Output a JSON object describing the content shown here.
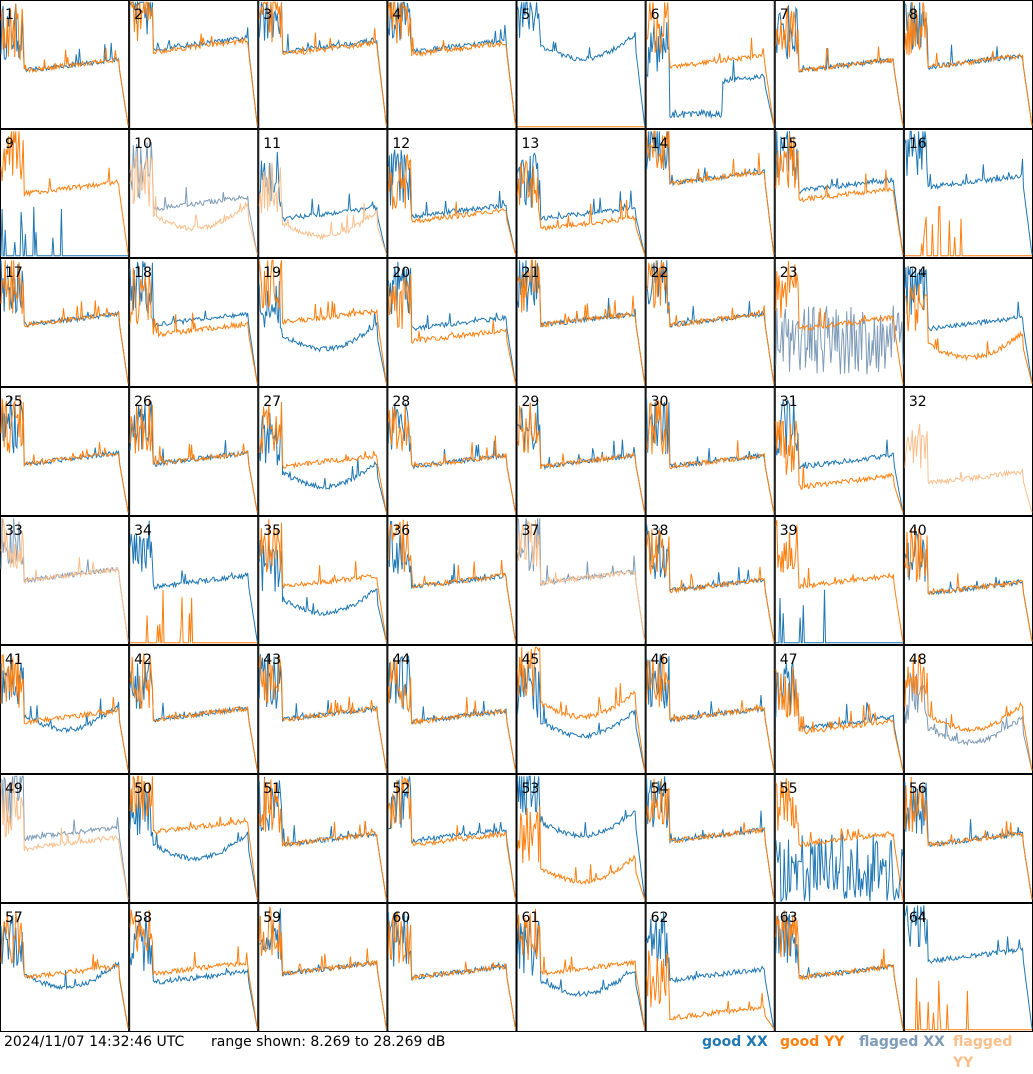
{
  "chart_data": {
    "type": "line",
    "layout": "small-multiples-8x8",
    "tile_labels": [
      "1",
      "2",
      "3",
      "4",
      "5",
      "6",
      "7",
      "8",
      "9",
      "10",
      "11",
      "12",
      "13",
      "14",
      "15",
      "16",
      "17",
      "18",
      "19",
      "20",
      "21",
      "22",
      "23",
      "24",
      "25",
      "26",
      "27",
      "28",
      "29",
      "30",
      "31",
      "32",
      "33",
      "34",
      "35",
      "36",
      "37",
      "38",
      "39",
      "40",
      "41",
      "42",
      "43",
      "44",
      "45",
      "46",
      "47",
      "48",
      "49",
      "50",
      "51",
      "52",
      "53",
      "54",
      "55",
      "56",
      "57",
      "58",
      "59",
      "60",
      "61",
      "62",
      "63",
      "64"
    ],
    "ylim": [
      8.269,
      28.269
    ],
    "y_unit": "dB",
    "series_styles": {
      "good_xx": "#1f77b4",
      "good_yy": "#ff7f0e",
      "flagged_xx": "#7e9bb8",
      "flagged_yy": "#fbbf8c"
    },
    "tiles": [
      {
        "xx": "good",
        "yy": "good",
        "xx_level": 0.45,
        "yy_level": 0.45,
        "xx_shape": "normal",
        "yy_shape": "normal"
      },
      {
        "xx": "good",
        "yy": "good",
        "xx_level": 0.62,
        "yy_level": 0.6,
        "xx_shape": "normal",
        "yy_shape": "normal"
      },
      {
        "xx": "good",
        "yy": "good",
        "xx_level": 0.6,
        "yy_level": 0.58,
        "xx_shape": "normal",
        "yy_shape": "normal"
      },
      {
        "xx": "good",
        "yy": "good",
        "xx_level": 0.6,
        "yy_level": 0.58,
        "xx_shape": "normal",
        "yy_shape": "normal"
      },
      {
        "xx": "good",
        "yy": "good",
        "xx_level": 0.6,
        "yy_level": 0.0,
        "xx_shape": "dipbump",
        "yy_shape": "flat"
      },
      {
        "xx": "good",
        "yy": "good",
        "xx_level": 0.32,
        "yy_level": 0.48,
        "xx_shape": "deepdip",
        "yy_shape": "normal"
      },
      {
        "xx": "good",
        "yy": "good",
        "xx_level": 0.45,
        "yy_level": 0.45,
        "xx_shape": "normal",
        "yy_shape": "normal"
      },
      {
        "xx": "good",
        "yy": "good",
        "xx_level": 0.48,
        "yy_level": 0.48,
        "xx_shape": "normal",
        "yy_shape": "normal"
      },
      {
        "xx": "good",
        "yy": "good",
        "xx_level": 0.0,
        "yy_level": 0.5,
        "xx_shape": "spikeslow",
        "yy_shape": "normal"
      },
      {
        "xx": "flagged",
        "yy": "flagged",
        "xx_level": 0.38,
        "yy_level": 0.28,
        "xx_shape": "normal",
        "yy_shape": "dipbump"
      },
      {
        "xx": "good",
        "yy": "flagged",
        "xx_level": 0.3,
        "yy_level": 0.22,
        "xx_shape": "normal",
        "yy_shape": "dipbump"
      },
      {
        "xx": "good",
        "yy": "good",
        "xx_level": 0.32,
        "yy_level": 0.28,
        "xx_shape": "normal",
        "yy_shape": "normal"
      },
      {
        "xx": "good",
        "yy": "good",
        "xx_level": 0.3,
        "yy_level": 0.22,
        "xx_shape": "normal",
        "yy_shape": "normal"
      },
      {
        "xx": "good",
        "yy": "good",
        "xx_level": 0.58,
        "yy_level": 0.58,
        "xx_shape": "normal",
        "yy_shape": "normal"
      },
      {
        "xx": "good",
        "yy": "good",
        "xx_level": 0.52,
        "yy_level": 0.45,
        "xx_shape": "normal",
        "yy_shape": "normal"
      },
      {
        "xx": "good",
        "yy": "good",
        "xx_level": 0.55,
        "yy_level": 0.0,
        "xx_shape": "normal",
        "yy_shape": "spikeslow"
      },
      {
        "xx": "good",
        "yy": "good",
        "xx_level": 0.48,
        "yy_level": 0.48,
        "xx_shape": "normal",
        "yy_shape": "normal"
      },
      {
        "xx": "good",
        "yy": "good",
        "xx_level": 0.48,
        "yy_level": 0.4,
        "xx_shape": "normal",
        "yy_shape": "normal"
      },
      {
        "xx": "good",
        "yy": "good",
        "xx_level": 0.35,
        "yy_level": 0.5,
        "xx_shape": "dipbump",
        "yy_shape": "normal"
      },
      {
        "xx": "good",
        "yy": "good",
        "xx_level": 0.45,
        "yy_level": 0.35,
        "xx_shape": "normal",
        "yy_shape": "normal"
      },
      {
        "xx": "good",
        "yy": "good",
        "xx_level": 0.48,
        "yy_level": 0.48,
        "xx_shape": "normal",
        "yy_shape": "normal"
      },
      {
        "xx": "good",
        "yy": "good",
        "xx_level": 0.48,
        "yy_level": 0.48,
        "xx_shape": "normal",
        "yy_shape": "normal"
      },
      {
        "xx": "flagged",
        "yy": "good",
        "xx_level": 0.2,
        "yy_level": 0.45,
        "xx_shape": "noisy",
        "yy_shape": "normal"
      },
      {
        "xx": "good",
        "yy": "good",
        "xx_level": 0.45,
        "yy_level": 0.28,
        "xx_shape": "normal",
        "yy_shape": "dipbump"
      },
      {
        "xx": "good",
        "yy": "good",
        "xx_level": 0.4,
        "yy_level": 0.4,
        "xx_shape": "normal",
        "yy_shape": "normal"
      },
      {
        "xx": "good",
        "yy": "good",
        "xx_level": 0.4,
        "yy_level": 0.4,
        "xx_shape": "normal",
        "yy_shape": "normal"
      },
      {
        "xx": "good",
        "yy": "good",
        "xx_level": 0.28,
        "yy_level": 0.38,
        "xx_shape": "dipbump",
        "yy_shape": "normal"
      },
      {
        "xx": "good",
        "yy": "good",
        "xx_level": 0.38,
        "yy_level": 0.38,
        "xx_shape": "normal",
        "yy_shape": "normal"
      },
      {
        "xx": "good",
        "yy": "good",
        "xx_level": 0.38,
        "yy_level": 0.38,
        "xx_shape": "normal",
        "yy_shape": "normal"
      },
      {
        "xx": "good",
        "yy": "good",
        "xx_level": 0.38,
        "yy_level": 0.38,
        "xx_shape": "normal",
        "yy_shape": "normal"
      },
      {
        "xx": "good",
        "yy": "good",
        "xx_level": 0.38,
        "yy_level": 0.22,
        "xx_shape": "normal",
        "yy_shape": "normal"
      },
      {
        "xx": "none",
        "yy": "flagged",
        "xx_level": 0.0,
        "yy_level": 0.25,
        "xx_shape": "flat",
        "yy_shape": "normal"
      },
      {
        "xx": "flagged",
        "yy": "flagged",
        "xx_level": 0.5,
        "yy_level": 0.5,
        "xx_shape": "normal",
        "yy_shape": "normal"
      },
      {
        "xx": "good",
        "yy": "good",
        "xx_level": 0.45,
        "yy_level": 0.0,
        "xx_shape": "normal",
        "yy_shape": "spikeslow"
      },
      {
        "xx": "good",
        "yy": "good",
        "xx_level": 0.3,
        "yy_level": 0.45,
        "xx_shape": "dipbump",
        "yy_shape": "normal"
      },
      {
        "xx": "good",
        "yy": "good",
        "xx_level": 0.45,
        "yy_level": 0.45,
        "xx_shape": "normal",
        "yy_shape": "normal"
      },
      {
        "xx": "flagged",
        "yy": "flagged",
        "xx_level": 0.48,
        "yy_level": 0.48,
        "xx_shape": "normal",
        "yy_shape": "normal"
      },
      {
        "xx": "good",
        "yy": "good",
        "xx_level": 0.42,
        "yy_level": 0.42,
        "xx_shape": "normal",
        "yy_shape": "normal"
      },
      {
        "xx": "good",
        "yy": "good",
        "xx_level": 0.0,
        "yy_level": 0.45,
        "xx_shape": "spikeslow",
        "yy_shape": "normal"
      },
      {
        "xx": "good",
        "yy": "good",
        "xx_level": 0.4,
        "yy_level": 0.4,
        "xx_shape": "normal",
        "yy_shape": "normal"
      },
      {
        "xx": "good",
        "yy": "good",
        "xx_level": 0.4,
        "yy_level": 0.4,
        "xx_shape": "dipbump",
        "yy_shape": "normal"
      },
      {
        "xx": "good",
        "yy": "good",
        "xx_level": 0.42,
        "yy_level": 0.42,
        "xx_shape": "normal",
        "yy_shape": "normal"
      },
      {
        "xx": "good",
        "yy": "good",
        "xx_level": 0.42,
        "yy_level": 0.42,
        "xx_shape": "normal",
        "yy_shape": "normal"
      },
      {
        "xx": "good",
        "yy": "good",
        "xx_level": 0.4,
        "yy_level": 0.4,
        "xx_shape": "normal",
        "yy_shape": "normal"
      },
      {
        "xx": "good",
        "yy": "good",
        "xx_level": 0.35,
        "yy_level": 0.5,
        "xx_shape": "dipbump",
        "yy_shape": "dipbump"
      },
      {
        "xx": "good",
        "yy": "good",
        "xx_level": 0.42,
        "yy_level": 0.42,
        "xx_shape": "normal",
        "yy_shape": "normal"
      },
      {
        "xx": "good",
        "yy": "good",
        "xx_level": 0.35,
        "yy_level": 0.32,
        "xx_shape": "normal",
        "yy_shape": "normal"
      },
      {
        "xx": "flagged",
        "yy": "good",
        "xx_level": 0.3,
        "yy_level": 0.4,
        "xx_shape": "dipbump",
        "yy_shape": "dipbump"
      },
      {
        "xx": "flagged",
        "yy": "flagged",
        "xx_level": 0.5,
        "yy_level": 0.42,
        "xx_shape": "normal",
        "yy_shape": "normal"
      },
      {
        "xx": "good",
        "yy": "good",
        "xx_level": 0.4,
        "yy_level": 0.55,
        "xx_shape": "dipbump",
        "yy_shape": "normal"
      },
      {
        "xx": "good",
        "yy": "good",
        "xx_level": 0.45,
        "yy_level": 0.45,
        "xx_shape": "normal",
        "yy_shape": "normal"
      },
      {
        "xx": "good",
        "yy": "good",
        "xx_level": 0.48,
        "yy_level": 0.45,
        "xx_shape": "normal",
        "yy_shape": "normal"
      },
      {
        "xx": "good",
        "yy": "good",
        "xx_level": 0.58,
        "yy_level": 0.22,
        "xx_shape": "dipbump",
        "yy_shape": "dipbump"
      },
      {
        "xx": "good",
        "yy": "good",
        "xx_level": 0.48,
        "yy_level": 0.48,
        "xx_shape": "normal",
        "yy_shape": "normal"
      },
      {
        "xx": "good",
        "yy": "good",
        "xx_level": 0.1,
        "yy_level": 0.45,
        "xx_shape": "noisy",
        "yy_shape": "normal"
      },
      {
        "xx": "good",
        "yy": "good",
        "xx_level": 0.45,
        "yy_level": 0.45,
        "xx_shape": "normal",
        "yy_shape": "normal"
      },
      {
        "xx": "good",
        "yy": "good",
        "xx_level": 0.4,
        "yy_level": 0.42,
        "xx_shape": "dipbump",
        "yy_shape": "normal"
      },
      {
        "xx": "good",
        "yy": "good",
        "xx_level": 0.38,
        "yy_level": 0.45,
        "xx_shape": "normal",
        "yy_shape": "normal"
      },
      {
        "xx": "good",
        "yy": "good",
        "xx_level": 0.45,
        "yy_level": 0.45,
        "xx_shape": "normal",
        "yy_shape": "normal"
      },
      {
        "xx": "good",
        "yy": "good",
        "xx_level": 0.42,
        "yy_level": 0.42,
        "xx_shape": "normal",
        "yy_shape": "normal"
      },
      {
        "xx": "good",
        "yy": "good",
        "xx_level": 0.35,
        "yy_level": 0.45,
        "xx_shape": "dipbump",
        "yy_shape": "normal"
      },
      {
        "xx": "good",
        "yy": "good",
        "xx_level": 0.4,
        "yy_level": 0.1,
        "xx_shape": "normal",
        "yy_shape": "normal"
      },
      {
        "xx": "good",
        "yy": "good",
        "xx_level": 0.42,
        "yy_level": 0.42,
        "xx_shape": "normal",
        "yy_shape": "normal"
      },
      {
        "xx": "good",
        "yy": "good",
        "xx_level": 0.55,
        "yy_level": 0.0,
        "xx_shape": "normal",
        "yy_shape": "spikeslow"
      }
    ],
    "legend": [
      {
        "label": "good XX",
        "color": "#1f77b4"
      },
      {
        "label": "good YY",
        "color": "#ff7f0e"
      },
      {
        "label": "flagged XX",
        "color": "#7e9bb8"
      },
      {
        "label": "flagged YY",
        "color": "#fbbf8c"
      }
    ]
  },
  "footer": {
    "timestamp": "2024/11/07 14:32:46 UTC",
    "range_text": "range shown: 8.269 to 28.269 dB"
  }
}
